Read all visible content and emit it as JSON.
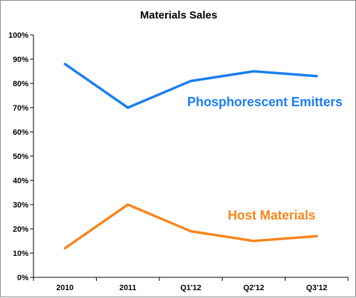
{
  "chart_data": {
    "type": "line",
    "title": "Materials Sales",
    "categories": [
      "2010",
      "2011",
      "Q1'12",
      "Q2'12",
      "Q3'12"
    ],
    "y_tick_labels": [
      "0%",
      "10%",
      "20%",
      "30%",
      "40%",
      "50%",
      "60%",
      "70%",
      "80%",
      "90%",
      "100%"
    ],
    "ylim": [
      0,
      100
    ],
    "grid": false,
    "legend": "inline labels",
    "series": [
      {
        "name": "Phosphorescent Emitters",
        "values": [
          88,
          70,
          81,
          85,
          83
        ],
        "color": "#1a7ef0"
      },
      {
        "name": "Host Materials",
        "values": [
          12,
          30,
          19,
          15,
          17
        ],
        "color": "#f7861d"
      }
    ]
  }
}
